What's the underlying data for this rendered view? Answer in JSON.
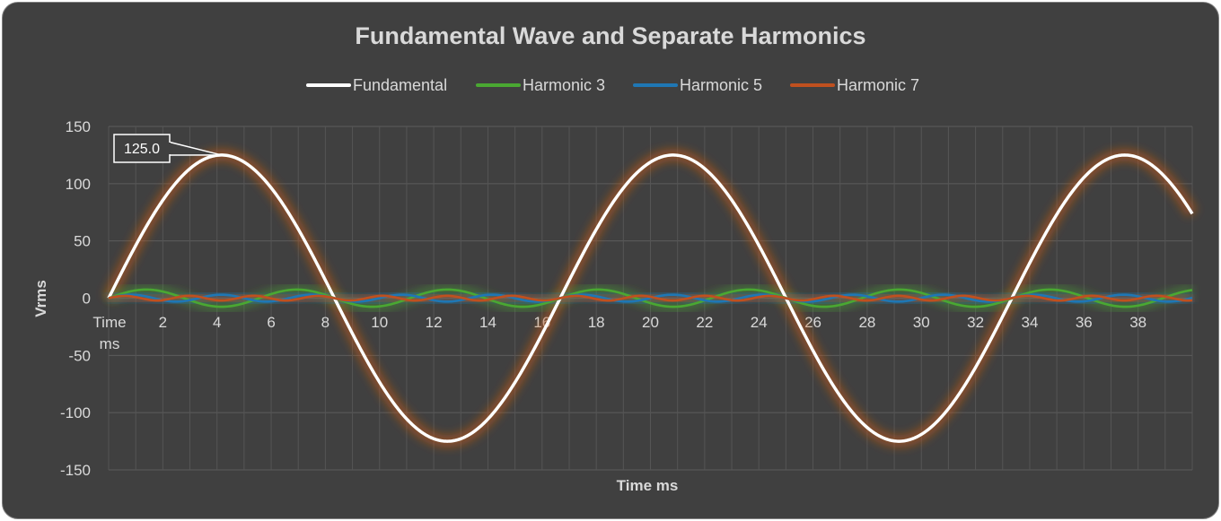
{
  "chart_data": {
    "type": "line",
    "title": "Fundamental Wave and Separate Harmonics",
    "xlabel": "Time ms",
    "ylabel": "Vrms",
    "x_first_tick_label": "Time\nms",
    "x_tick_values": [
      2,
      4,
      6,
      8,
      10,
      12,
      14,
      16,
      18,
      20,
      22,
      24,
      26,
      28,
      30,
      32,
      34,
      36,
      38
    ],
    "xlim": [
      0,
      40
    ],
    "ylim": [
      -150,
      150
    ],
    "y_ticks": [
      150,
      100,
      50,
      0,
      -50,
      -100,
      -150
    ],
    "grid": true,
    "legend_position": "top",
    "series": [
      {
        "name": "Fundamental",
        "color": "#ffffff",
        "glow": "#c55a11",
        "amplitude": 125.0,
        "period_ms": 16.67,
        "phase_ms": 0
      },
      {
        "name": "Harmonic 3",
        "color": "#4aa832",
        "glow": "#4aa832",
        "amplitude": 7.5,
        "period_ms": 5.56,
        "phase_ms": 0
      },
      {
        "name": "Harmonic 5",
        "color": "#1f77b4",
        "glow": "#1f77b4",
        "amplitude": 3.0,
        "period_ms": 3.33,
        "phase_ms": 0
      },
      {
        "name": "Harmonic 7",
        "color": "#c0501f",
        "glow": "#c0501f",
        "amplitude": 2.0,
        "period_ms": 2.38,
        "phase_ms": 0
      }
    ],
    "annotations": [
      {
        "text": "125.0",
        "series": "Fundamental",
        "x": 4.17,
        "y": 125.0
      }
    ]
  }
}
